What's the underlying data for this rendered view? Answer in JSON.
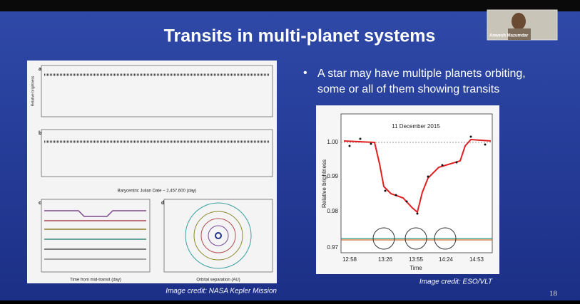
{
  "slide": {
    "title": "Transits in multi-planet systems",
    "bullet_lines": [
      "A star may have multiple planets orbiting,",
      "some or all of them showing transits"
    ],
    "left_credit": "Image credit: NASA Kepler Mission",
    "right_credit": "Image credit: ESO/VLT",
    "page_number": "18"
  },
  "participant": {
    "name": "Anwesh Mazumdar"
  },
  "left_figure": {
    "panels": [
      "a",
      "b",
      "c",
      "d"
    ],
    "y_label": "Relative brightness",
    "b_x_label": "Barycentric Julian Date − 2,457,600 (day)",
    "c_x_label": "Time from mid-transit (day)",
    "d_x_label": "Orbital separation (AU)"
  },
  "right_figure": {
    "title": "11 December 2015",
    "x_label": "Time",
    "y_label": "Relative brightness",
    "x_ticks": [
      "12:58",
      "13:26",
      "13:55",
      "14:24",
      "14:53"
    ],
    "y_ticks": [
      "1.00",
      "0.99",
      "0.98",
      "0.97"
    ]
  }
}
